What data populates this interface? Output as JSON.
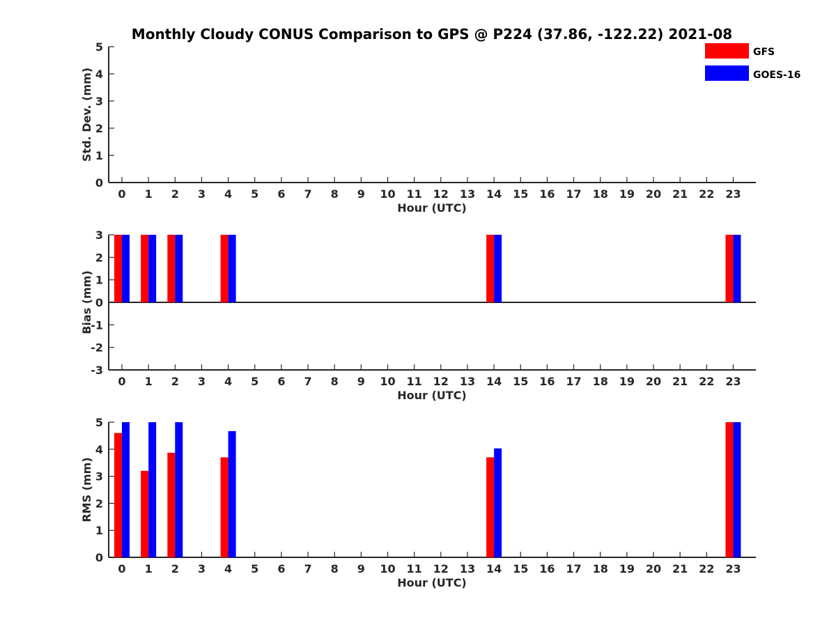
{
  "title": "Monthly Cloudy CONUS Comparison to GPS @ P224 (37.86, -122.22) 2021-08",
  "legend": {
    "items": [
      {
        "label": "GFS",
        "color": "#ff0000"
      },
      {
        "label": "GOES-16",
        "color": "#0000ff"
      }
    ]
  },
  "chart_data": [
    {
      "type": "bar",
      "title": "Monthly Cloudy CONUS Comparison to GPS @ P224 (37.86, -122.22) 2021-08",
      "xlabel": "Hour (UTC)",
      "ylabel": "Std. Dev. (mm)",
      "ylim": [
        0,
        5
      ],
      "yticks": [
        "0",
        "1",
        "2",
        "3",
        "4",
        "5"
      ],
      "categories": [
        "0",
        "1",
        "2",
        "3",
        "4",
        "5",
        "6",
        "7",
        "8",
        "9",
        "10",
        "11",
        "12",
        "13",
        "14",
        "15",
        "16",
        "17",
        "18",
        "19",
        "20",
        "21",
        "22",
        "23"
      ],
      "series": [
        {
          "name": "GFS",
          "color": "#ff0000",
          "values": [
            null,
            null,
            null,
            null,
            null,
            null,
            null,
            null,
            null,
            null,
            null,
            null,
            null,
            null,
            null,
            null,
            null,
            null,
            null,
            null,
            null,
            null,
            null,
            null
          ]
        },
        {
          "name": "GOES-16",
          "color": "#0000ff",
          "values": [
            null,
            null,
            null,
            null,
            null,
            null,
            null,
            null,
            null,
            null,
            null,
            null,
            null,
            null,
            null,
            null,
            null,
            null,
            null,
            null,
            null,
            null,
            null,
            null
          ]
        }
      ]
    },
    {
      "type": "bar",
      "xlabel": "Hour (UTC)",
      "ylabel": "Bias (mm)",
      "ylim": [
        -3,
        3
      ],
      "yticks": [
        "-3",
        "-2",
        "-1",
        "0",
        "1",
        "2",
        "3"
      ],
      "categories": [
        "0",
        "1",
        "2",
        "3",
        "4",
        "5",
        "6",
        "7",
        "8",
        "9",
        "10",
        "11",
        "12",
        "13",
        "14",
        "15",
        "16",
        "17",
        "18",
        "19",
        "20",
        "21",
        "22",
        "23"
      ],
      "series": [
        {
          "name": "GFS",
          "color": "#ff0000",
          "values": [
            3,
            3,
            3,
            null,
            3,
            null,
            null,
            null,
            null,
            null,
            null,
            null,
            null,
            null,
            3,
            null,
            null,
            null,
            null,
            null,
            null,
            null,
            null,
            3
          ]
        },
        {
          "name": "GOES-16",
          "color": "#0000ff",
          "values": [
            3,
            3,
            3,
            null,
            3,
            null,
            null,
            null,
            null,
            null,
            null,
            null,
            null,
            null,
            3,
            null,
            null,
            null,
            null,
            null,
            null,
            null,
            null,
            3
          ]
        }
      ]
    },
    {
      "type": "bar",
      "xlabel": "Hour (UTC)",
      "ylabel": "RMS (mm)",
      "ylim": [
        0,
        5
      ],
      "yticks": [
        "0",
        "1",
        "2",
        "3",
        "4",
        "5"
      ],
      "categories": [
        "0",
        "1",
        "2",
        "3",
        "4",
        "5",
        "6",
        "7",
        "8",
        "9",
        "10",
        "11",
        "12",
        "13",
        "14",
        "15",
        "16",
        "17",
        "18",
        "19",
        "20",
        "21",
        "22",
        "23"
      ],
      "series": [
        {
          "name": "GFS",
          "color": "#ff0000",
          "values": [
            4.6,
            3.2,
            3.87,
            null,
            3.7,
            null,
            null,
            null,
            null,
            null,
            null,
            null,
            null,
            null,
            3.7,
            null,
            null,
            null,
            null,
            null,
            null,
            null,
            null,
            5
          ]
        },
        {
          "name": "GOES-16",
          "color": "#0000ff",
          "values": [
            5,
            5,
            5,
            null,
            4.67,
            null,
            null,
            null,
            null,
            null,
            null,
            null,
            null,
            null,
            4.03,
            null,
            null,
            null,
            null,
            null,
            null,
            null,
            null,
            5
          ]
        }
      ]
    }
  ]
}
